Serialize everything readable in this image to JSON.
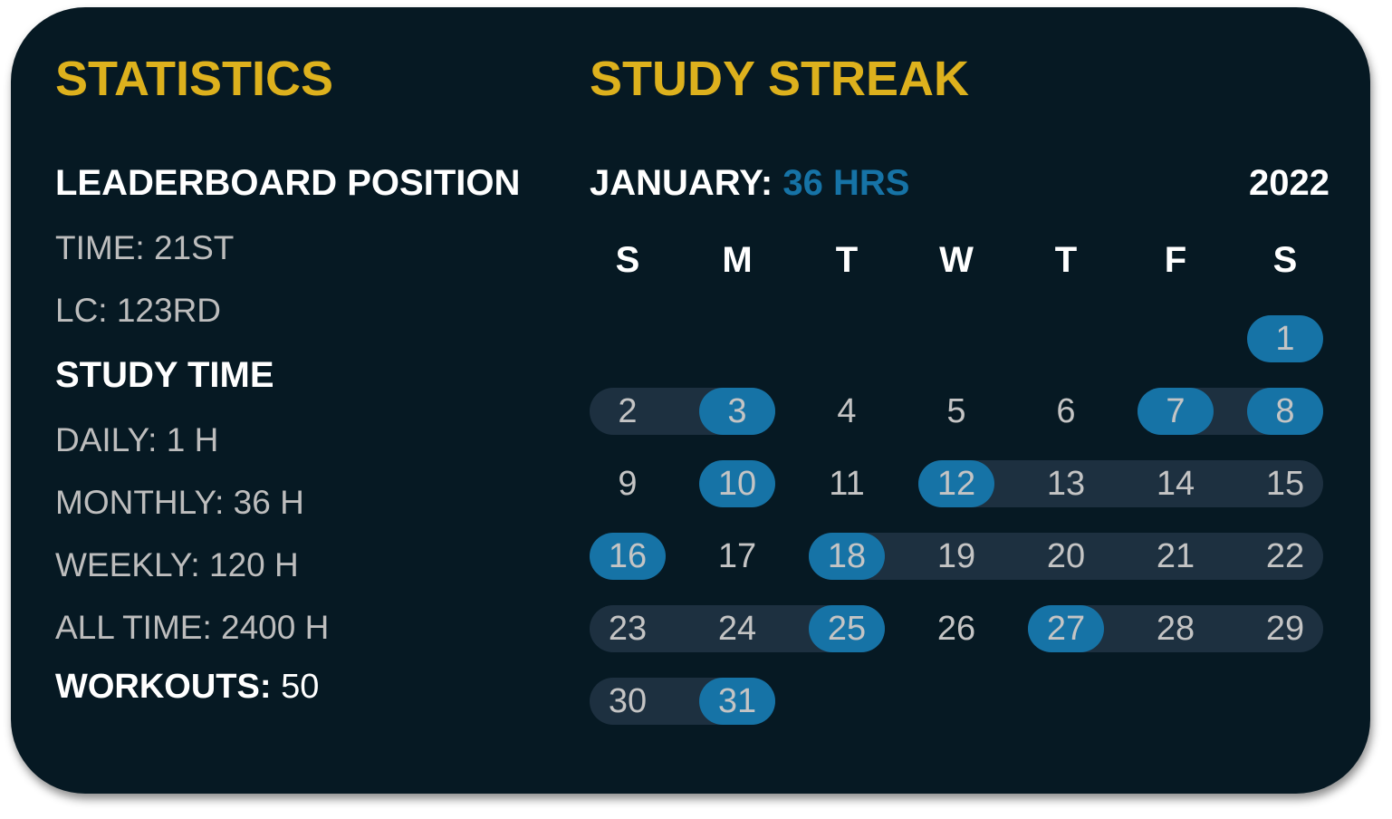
{
  "statistics": {
    "title": "STATISTICS",
    "leaderboard_heading": "LEADERBOARD POSITION",
    "leaderboard_items": [
      "TIME: 21ST",
      "LC: 123RD"
    ],
    "study_time_heading": "STUDY TIME",
    "study_time_items": [
      "DAILY: 1 H",
      "MONTHLY: 36 H",
      "WEEKLY: 120 H",
      "ALL TIME: 2400 H"
    ],
    "workouts_label": "WORKOUTS:",
    "workouts_value": "50"
  },
  "streak": {
    "title": "STUDY STREAK",
    "month_label": "JANUARY:",
    "month_hours": "36 HRS",
    "year": "2022",
    "weekdays": [
      "S",
      "M",
      "T",
      "W",
      "T",
      "F",
      "S"
    ],
    "first_weekday_index": 6,
    "days_in_month": 31,
    "active_days": [
      1,
      3,
      7,
      8,
      10,
      12,
      16,
      18,
      25,
      27,
      31
    ],
    "streak_ranges": [
      [
        2,
        3
      ],
      [
        7,
        8
      ],
      [
        12,
        15
      ],
      [
        18,
        22
      ],
      [
        23,
        25
      ],
      [
        27,
        29
      ],
      [
        30,
        31
      ]
    ]
  },
  "colors": {
    "background": "#061923",
    "title": "#DDB11D",
    "active": "#1673A6",
    "streak": "#1D3040"
  }
}
